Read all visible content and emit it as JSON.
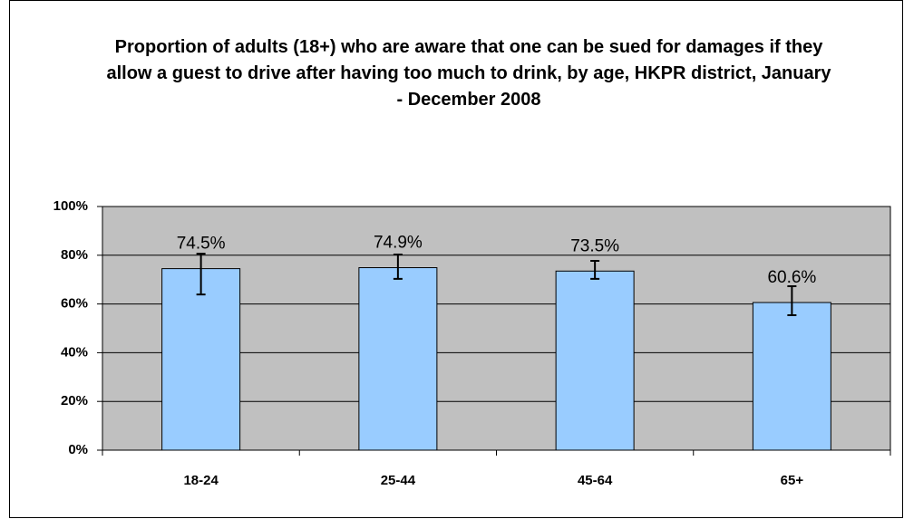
{
  "chart_data": {
    "type": "bar",
    "title": "Proportion of adults (18+) who are aware that one can be sued for damages if they allow a guest to drive after having too much to drink, by age, HKPR district, January - December 2008",
    "categories": [
      "18-24",
      "25-44",
      "45-64",
      "65+"
    ],
    "values": [
      74.5,
      74.9,
      73.5,
      60.6
    ],
    "value_labels": [
      "74.5%",
      "74.9%",
      "73.5%",
      "60.6%"
    ],
    "ci_low": [
      63.9,
      70.3,
      70.3,
      55.4
    ],
    "ci_high": [
      80.6,
      80.3,
      77.7,
      67.3
    ],
    "color": "#99ccff",
    "plot_background": "#c0c0c0",
    "ylim": [
      0,
      100
    ],
    "yticks": [
      {
        "value": 0,
        "label": "0%"
      },
      {
        "value": 20,
        "label": "20%"
      },
      {
        "value": 40,
        "label": "40%"
      },
      {
        "value": 60,
        "label": "60%"
      },
      {
        "value": 80,
        "label": "80%"
      },
      {
        "value": 100,
        "label": "100%"
      }
    ],
    "grid": true
  }
}
